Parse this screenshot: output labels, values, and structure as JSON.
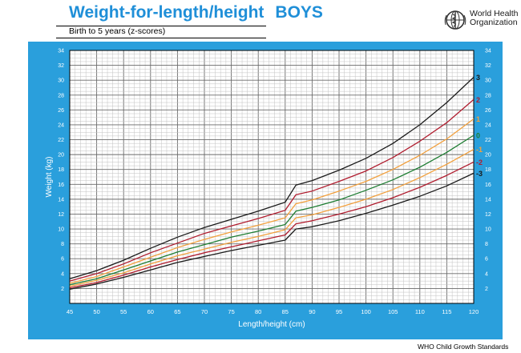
{
  "header": {
    "title": "Weight-for-length/height",
    "title_sex": "BOYS",
    "subtitle": "Birth to 5 years (z-scores)",
    "organization_line1": "World Health",
    "organization_line2": "Organization"
  },
  "footer": {
    "source": "WHO Child Growth Standards"
  },
  "colors": {
    "title": "#1f8fd8",
    "panel_background": "#2a9fdc",
    "plot_background": "#ffffff",
    "z3": "#1a1a1a",
    "z2": "#b01c2e",
    "z1": "#f2a03d",
    "z0": "#1e7d32"
  },
  "chart_data": {
    "type": "line",
    "xlabel": "Length/height (cm)",
    "ylabel": "Weight (kg)",
    "xlim": [
      45,
      120
    ],
    "ylim": [
      0,
      34
    ],
    "x_ticks": [
      45,
      50,
      55,
      60,
      65,
      70,
      75,
      80,
      85,
      90,
      95,
      100,
      105,
      110,
      115,
      120
    ],
    "y_ticks": [
      2,
      4,
      6,
      8,
      10,
      12,
      14,
      16,
      18,
      20,
      22,
      24,
      26,
      28,
      30,
      32,
      34
    ],
    "grid": true,
    "x": [
      45,
      50,
      55,
      60,
      65,
      70,
      75,
      80,
      85,
      87,
      90,
      95,
      100,
      105,
      110,
      115,
      120
    ],
    "series": [
      {
        "name": "3",
        "color": "#1a1a1a",
        "values": [
          3.3,
          4.4,
          5.8,
          7.4,
          8.9,
          10.2,
          11.3,
          12.4,
          13.6,
          15.9,
          16.5,
          17.9,
          19.5,
          21.5,
          24.0,
          27.0,
          30.4
        ]
      },
      {
        "name": "2",
        "color": "#b01c2e",
        "values": [
          3.0,
          4.0,
          5.3,
          6.8,
          8.1,
          9.4,
          10.4,
          11.4,
          12.5,
          14.6,
          15.1,
          16.4,
          17.8,
          19.6,
          21.8,
          24.3,
          27.4
        ]
      },
      {
        "name": "1",
        "color": "#f2a03d",
        "values": [
          2.7,
          3.6,
          4.9,
          6.2,
          7.5,
          8.6,
          9.6,
          10.5,
          11.5,
          13.4,
          13.9,
          15.1,
          16.4,
          18.0,
          19.9,
          22.1,
          24.8
        ]
      },
      {
        "name": "0",
        "color": "#1e7d32",
        "values": [
          2.5,
          3.3,
          4.5,
          5.7,
          6.9,
          7.9,
          8.9,
          9.7,
          10.6,
          12.4,
          12.9,
          13.9,
          15.2,
          16.6,
          18.3,
          20.3,
          22.6
        ]
      },
      {
        "name": "-1",
        "color": "#f2a03d",
        "values": [
          2.3,
          3.1,
          4.1,
          5.3,
          6.4,
          7.3,
          8.2,
          9.0,
          9.9,
          11.5,
          11.9,
          12.9,
          14.0,
          15.3,
          16.9,
          18.7,
          20.7
        ]
      },
      {
        "name": "-2",
        "color": "#b01c2e",
        "values": [
          2.1,
          2.8,
          3.8,
          4.9,
          5.9,
          6.8,
          7.6,
          8.4,
          9.2,
          10.7,
          11.1,
          12.0,
          13.0,
          14.2,
          15.6,
          17.2,
          19.0
        ]
      },
      {
        "name": "-3",
        "color": "#1a1a1a",
        "values": [
          1.9,
          2.6,
          3.5,
          4.5,
          5.5,
          6.3,
          7.1,
          7.8,
          8.5,
          10.0,
          10.3,
          11.1,
          12.1,
          13.2,
          14.4,
          15.8,
          17.5
        ]
      }
    ]
  }
}
